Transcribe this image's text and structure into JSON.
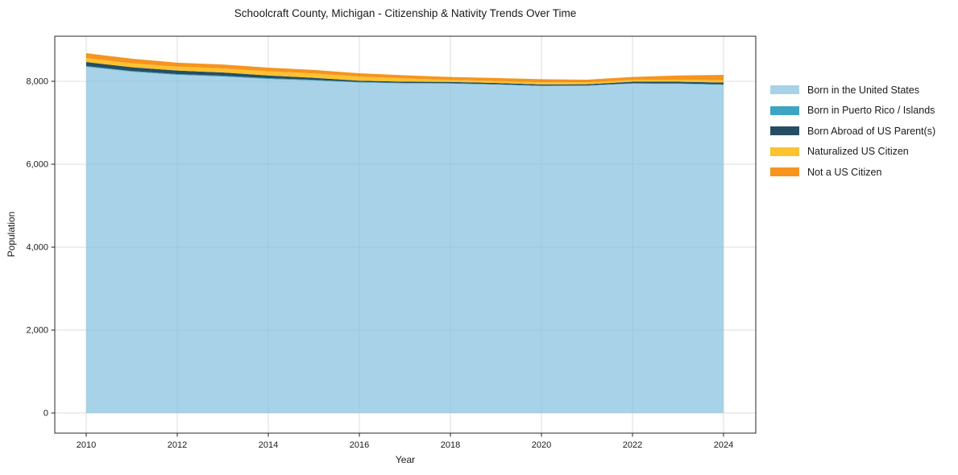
{
  "figure": {
    "title": "Schoolcraft County, Michigan - Citizenship & Nativity Trends Over Time",
    "xlabel": "Year",
    "ylabel": "Population"
  },
  "chart_data": {
    "type": "area",
    "stacked": true,
    "title": "Schoolcraft County, Michigan - Citizenship & Nativity Trends Over Time",
    "xlabel": "Year",
    "ylabel": "Population",
    "xlim": [
      2010,
      2024
    ],
    "ylim": [
      0,
      9000
    ],
    "grid": true,
    "legend_position": "right",
    "x": [
      2010,
      2011,
      2012,
      2013,
      2014,
      2015,
      2016,
      2017,
      2018,
      2019,
      2020,
      2021,
      2022,
      2023,
      2024
    ],
    "x_tick_values": [
      2010,
      2012,
      2014,
      2016,
      2018,
      2020,
      2022,
      2024
    ],
    "x_tick_labels": [
      "2010",
      "2012",
      "2014",
      "2016",
      "2018",
      "2020",
      "2022",
      "2024"
    ],
    "y_tick_values": [
      0,
      2000,
      4000,
      6000,
      8000
    ],
    "y_tick_labels": [
      "0",
      "2,000",
      "4,000",
      "6,000",
      "8,000"
    ],
    "series": [
      {
        "name": "Born in the United States",
        "color": "#a8d2e7",
        "values": [
          8350,
          8230,
          8155,
          8115,
          8055,
          8020,
          7970,
          7950,
          7945,
          7920,
          7885,
          7890,
          7945,
          7940,
          7915
        ]
      },
      {
        "name": "Born in Puerto Rico / Islands",
        "color": "#3ea4c3",
        "values": [
          20,
          20,
          20,
          20,
          20,
          15,
          15,
          10,
          10,
          10,
          10,
          10,
          10,
          10,
          10
        ]
      },
      {
        "name": "Born Abroad of US Parent(s)",
        "color": "#264e63",
        "values": [
          95,
          90,
          85,
          78,
          65,
          50,
          30,
          30,
          30,
          30,
          30,
          30,
          35,
          40,
          45
        ]
      },
      {
        "name": "Naturalized US Citizen",
        "color": "#fcc230",
        "values": [
          95,
          95,
          95,
          97,
          100,
          105,
          100,
          80,
          50,
          50,
          50,
          45,
          45,
          50,
          55
        ]
      },
      {
        "name": "Not a US Citizen",
        "color": "#f6941e",
        "values": [
          120,
          110,
          95,
          96,
          90,
          85,
          80,
          75,
          70,
          70,
          75,
          65,
          70,
          100,
          130
        ]
      }
    ],
    "colors": {
      "grid": "#e9e9e9",
      "spine": "#262626",
      "tick_label": "#1a1a1a",
      "background": "#ffffff"
    }
  }
}
